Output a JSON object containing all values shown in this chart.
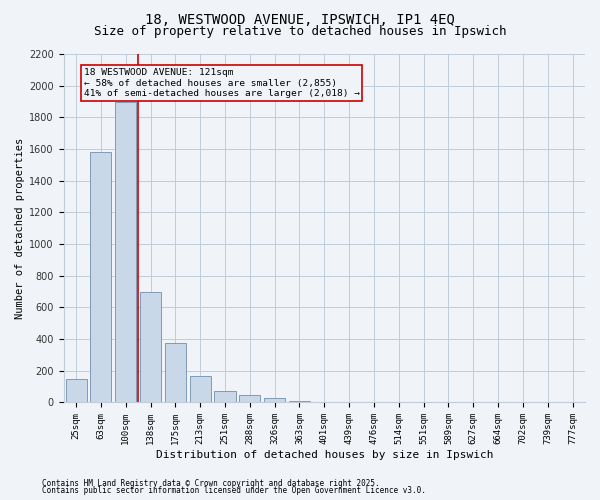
{
  "title1": "18, WESTWOOD AVENUE, IPSWICH, IP1 4EQ",
  "title2": "Size of property relative to detached houses in Ipswich",
  "xlabel": "Distribution of detached houses by size in Ipswich",
  "ylabel": "Number of detached properties",
  "categories": [
    "25sqm",
    "63sqm",
    "100sqm",
    "138sqm",
    "175sqm",
    "213sqm",
    "251sqm",
    "288sqm",
    "326sqm",
    "363sqm",
    "401sqm",
    "439sqm",
    "476sqm",
    "514sqm",
    "551sqm",
    "589sqm",
    "627sqm",
    "664sqm",
    "702sqm",
    "739sqm",
    "777sqm"
  ],
  "values": [
    150,
    1580,
    1900,
    700,
    375,
    170,
    75,
    50,
    30,
    10,
    5,
    3,
    2,
    1,
    1,
    0,
    0,
    0,
    0,
    0,
    0
  ],
  "bar_color": "#c8d8e8",
  "bar_edge_color": "#7090b0",
  "vline_color": "#cc0000",
  "annotation_text": "18 WESTWOOD AVENUE: 121sqm\n← 58% of detached houses are smaller (2,855)\n41% of semi-detached houses are larger (2,018) →",
  "annotation_box_color": "#cc0000",
  "ylim": [
    0,
    2200
  ],
  "yticks": [
    0,
    200,
    400,
    600,
    800,
    1000,
    1200,
    1400,
    1600,
    1800,
    2000,
    2200
  ],
  "footnote1": "Contains HM Land Registry data © Crown copyright and database right 2025.",
  "footnote2": "Contains public sector information licensed under the Open Government Licence v3.0.",
  "bg_color": "#f0f4f8",
  "grid_color": "#c0ccd8"
}
